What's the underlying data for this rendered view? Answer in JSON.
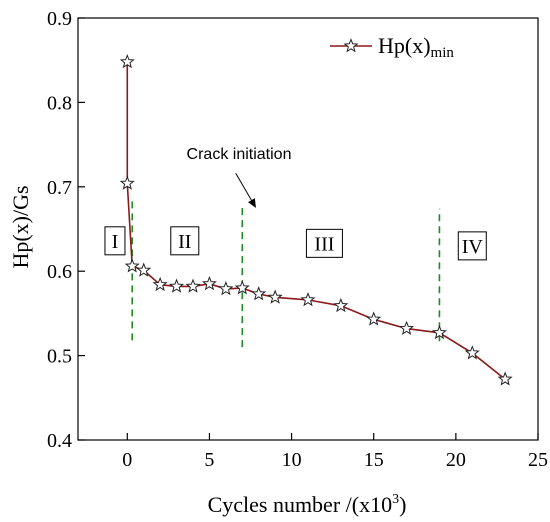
{
  "chart_data": {
    "type": "line",
    "xlabel": "Cycles number /(x10",
    "xlabel_sup": "3",
    "xlabel_close": ")",
    "ylabel": "Hp(x)/Gs",
    "xlim": [
      -3,
      25
    ],
    "ylim": [
      0.4,
      0.9
    ],
    "x_ticks": [
      0,
      5,
      10,
      15,
      20,
      25
    ],
    "y_ticks": [
      0.4,
      0.5,
      0.6,
      0.7,
      0.8,
      0.9
    ],
    "x_tick_labels": [
      "0",
      "5",
      "10",
      "15",
      "20",
      "25"
    ],
    "y_tick_labels": [
      "0.4",
      "0.5",
      "0.6",
      "0.7",
      "0.8",
      "0.9"
    ],
    "grid": false,
    "legend_position": "top-right",
    "series": [
      {
        "name": "Hp(x)min",
        "name_main": "Hp(x)",
        "name_sub": "min",
        "color": "#8b1a1a",
        "marker": "star",
        "x": [
          0,
          0,
          0.3,
          1,
          2,
          3,
          4,
          5,
          6,
          7,
          8,
          9,
          11,
          13,
          15,
          17,
          19,
          21,
          23
        ],
        "y": [
          0.848,
          0.704,
          0.606,
          0.601,
          0.584,
          0.582,
          0.582,
          0.585,
          0.579,
          0.58,
          0.573,
          0.569,
          0.566,
          0.559,
          0.543,
          0.532,
          0.527,
          0.503,
          0.472
        ]
      }
    ],
    "boundaries": {
      "color": "#228b22",
      "lines": [
        {
          "x": 0.3,
          "y_range": [
            0.518,
            0.684
          ]
        },
        {
          "x": 7.0,
          "y_range": [
            0.51,
            0.676
          ]
        },
        {
          "x": 19.0,
          "y_range": [
            0.517,
            0.674
          ]
        }
      ]
    },
    "stages": [
      {
        "label": "I",
        "x": -0.75,
        "y": 0.636
      },
      {
        "label": "II",
        "x": 3.5,
        "y": 0.636
      },
      {
        "label": "III",
        "x": 12.0,
        "y": 0.633
      },
      {
        "label": "IV",
        "x": 21.0,
        "y": 0.63
      }
    ],
    "annotation": {
      "text": "Crack initiation",
      "text_x": 6.8,
      "text_y": 0.733,
      "arrow_from": [
        6.6,
        0.716
      ],
      "arrow_to": [
        7.8,
        0.676
      ]
    }
  }
}
